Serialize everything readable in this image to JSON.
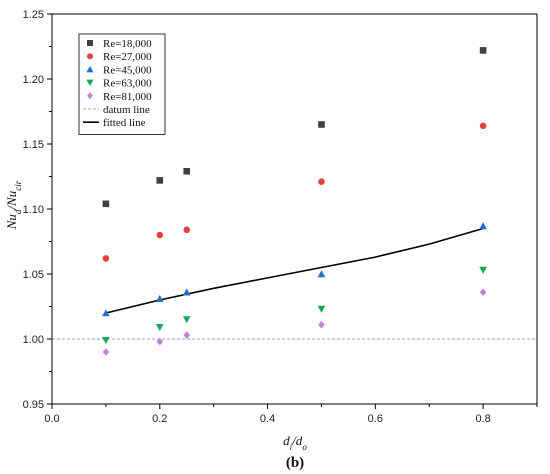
{
  "chart_data": {
    "type": "scatter",
    "title": "",
    "caption": "(b)",
    "xlabel": "d_i/d_o",
    "ylabel": "Nu_d/Nu_cir",
    "xlim": [
      0.0,
      0.9
    ],
    "ylim": [
      0.95,
      1.25
    ],
    "xticks": [
      "0.0",
      "0.2",
      "0.4",
      "0.6",
      "0.8"
    ],
    "xtick_values": [
      0.0,
      0.2,
      0.4,
      0.6,
      0.8
    ],
    "yticks": [
      "0.95",
      "1.00",
      "1.05",
      "1.10",
      "1.15",
      "1.20",
      "1.25"
    ],
    "ytick_values": [
      0.95,
      1.0,
      1.05,
      1.1,
      1.15,
      1.2,
      1.25
    ],
    "grid": false,
    "legend_position": "top-left",
    "series": [
      {
        "name": "Re=18,000",
        "marker": "square",
        "color": "#404040",
        "x": [
          0.1,
          0.2,
          0.25,
          0.5,
          0.8
        ],
        "y": [
          1.104,
          1.122,
          1.129,
          1.165,
          1.222
        ]
      },
      {
        "name": "Re=27,000",
        "marker": "circle",
        "color": "#e8413c",
        "x": [
          0.1,
          0.2,
          0.25,
          0.5,
          0.8
        ],
        "y": [
          1.062,
          1.08,
          1.084,
          1.121,
          1.164
        ]
      },
      {
        "name": "Re=45,000",
        "marker": "triangle-up",
        "color": "#1f6fd1",
        "x": [
          0.1,
          0.2,
          0.25,
          0.5,
          0.8
        ],
        "y": [
          1.02,
          1.031,
          1.036,
          1.05,
          1.087
        ]
      },
      {
        "name": "Re=63,000",
        "marker": "triangle-down",
        "color": "#19a65b",
        "x": [
          0.1,
          0.2,
          0.25,
          0.5,
          0.8
        ],
        "y": [
          0.999,
          1.009,
          1.015,
          1.023,
          1.053
        ]
      },
      {
        "name": "Re=81,000",
        "marker": "diamond",
        "color": "#c77ee0",
        "x": [
          0.1,
          0.2,
          0.25,
          0.5,
          0.8
        ],
        "y": [
          0.99,
          0.998,
          1.003,
          1.011,
          1.036
        ]
      }
    ],
    "lines": [
      {
        "name": "datum line",
        "style": "dashed",
        "color": "#888888",
        "x": [
          0.0,
          0.9
        ],
        "y": [
          1.0,
          1.0
        ]
      },
      {
        "name": "fitted line",
        "style": "solid",
        "color": "#000000",
        "x": [
          0.1,
          0.2,
          0.3,
          0.4,
          0.5,
          0.6,
          0.7,
          0.8
        ],
        "y": [
          1.02,
          1.03,
          1.039,
          1.047,
          1.055,
          1.063,
          1.073,
          1.085
        ]
      }
    ]
  }
}
